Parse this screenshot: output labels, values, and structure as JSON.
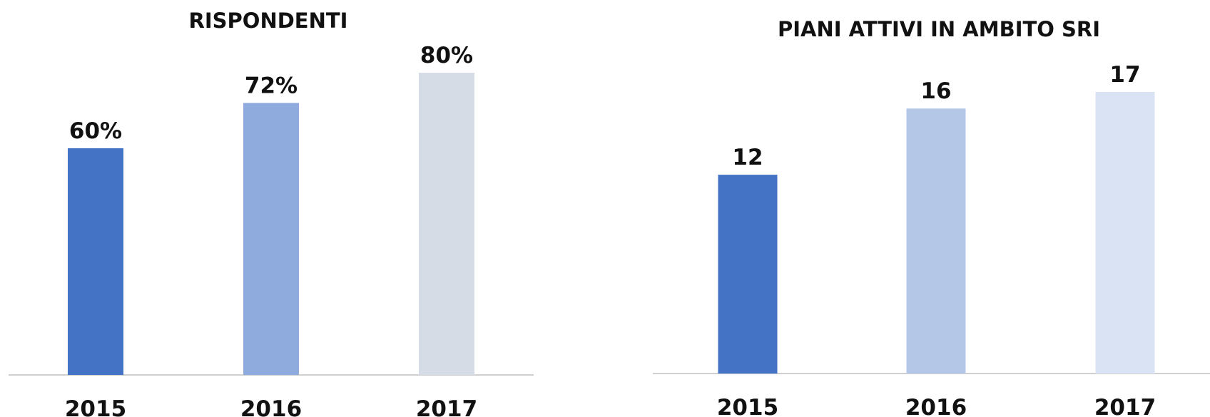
{
  "chart_data": [
    {
      "type": "bar",
      "title": "RISPONDENTI",
      "categories": [
        "2015",
        "2016",
        "2017"
      ],
      "values": [
        60,
        72,
        80
      ],
      "value_labels": [
        "60%",
        "72%",
        "80%"
      ],
      "unit": "%",
      "ylim": [
        0,
        80
      ],
      "grid": false,
      "legend": "none",
      "colors": [
        "#4472C4",
        "#8FAADC",
        "#D6DCE5"
      ]
    },
    {
      "type": "bar",
      "title": "PIANI ATTIVI IN AMBITO SRI",
      "categories": [
        "2015",
        "2016",
        "2017"
      ],
      "values": [
        12,
        16,
        17
      ],
      "value_labels": [
        "12",
        "16",
        "17"
      ],
      "ylim": [
        0,
        17
      ],
      "grid": false,
      "legend": "none",
      "colors": [
        "#4472C4",
        "#B4C7E7",
        "#DAE3F3"
      ]
    }
  ]
}
